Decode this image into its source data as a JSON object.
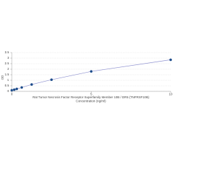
{
  "chart_data": {
    "type": "scatter",
    "title": "Rat Tumor Necrosis Factor Receptor Superfamily Member 10B / DR5 (TNFRSF10B)",
    "x_label": "Concentration (ng/ml)",
    "y_label": "OD",
    "series": [
      {
        "color": "#1f4e8c",
        "line_color": "#8c8fcf",
        "x": [
          0,
          0.156,
          0.312,
          0.625,
          1.25,
          2.5,
          5,
          10
        ],
        "values": [
          0.1,
          0.15,
          0.22,
          0.35,
          0.62,
          1.05,
          1.8,
          2.85
        ]
      }
    ],
    "xlim": [
      0,
      10
    ],
    "xticks": [
      0,
      5,
      10
    ],
    "ylim": [
      0,
      3.5
    ],
    "yticks": [
      0,
      0.5,
      1,
      1.5,
      2,
      2.5,
      3,
      3.5
    ],
    "grid": true
  }
}
